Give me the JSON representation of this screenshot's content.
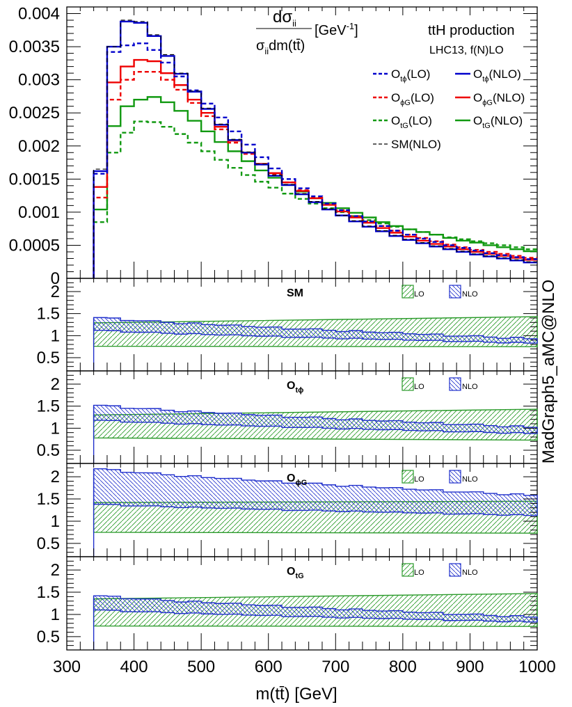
{
  "colors": {
    "tphi": "#0000cc",
    "phig": "#ee0000",
    "tg": "#119911",
    "sm": "#000000",
    "lo_band": "#2a9a2a",
    "nlo_band": "#1f2fcc"
  },
  "main_title": {
    "numerator": "dσ",
    "numerator_sub": "ii",
    "denominator": "σ",
    "denominator_sub": "ii",
    "denominator_rest": "dm(tt̄)",
    "unit": "[GeV",
    "unit_sup": "-1",
    "unit_close": "]"
  },
  "process_label": "ttH production",
  "process_sublabel": "LHC13, f(N)LO",
  "watermark": "MadGraph5_aMC@NLO",
  "x_axis_title": "m(tt̄) [GeV]",
  "legend": [
    {
      "key": "tphi_lo",
      "base": "O",
      "sub": "tϕ",
      "tail": "(LO)",
      "style": "dash",
      "color": "tphi"
    },
    {
      "key": "tphi_nlo",
      "base": "O",
      "sub": "tϕ",
      "tail": "(NLO)",
      "style": "solid",
      "color": "tphi"
    },
    {
      "key": "phig_lo",
      "base": "O",
      "sub": "ϕG",
      "tail": "(LO)",
      "style": "dash",
      "color": "phig"
    },
    {
      "key": "phig_nlo",
      "base": "O",
      "sub": "ϕG",
      "tail": "(NLO)",
      "style": "solid",
      "color": "phig"
    },
    {
      "key": "tg_lo",
      "base": "O",
      "sub": "tG",
      "tail": "(LO)",
      "style": "dash",
      "color": "tg"
    },
    {
      "key": "tg_nlo",
      "base": "O",
      "sub": "tG",
      "tail": "(NLO)",
      "style": "solid",
      "color": "tg"
    },
    {
      "key": "sm_nlo",
      "base": "SM",
      "sub": "",
      "tail": "(NLO)",
      "style": "dash",
      "color": "sm"
    }
  ],
  "chart_data": {
    "type": "histogram",
    "x_range": [
      300,
      1000
    ],
    "x_ticks": [
      "300",
      "400",
      "500",
      "600",
      "700",
      "800",
      "900",
      "1000"
    ],
    "x_tick_values": [
      300,
      400,
      500,
      600,
      700,
      800,
      900,
      1000
    ],
    "bin_edges": [
      340,
      360,
      380,
      400,
      420,
      440,
      460,
      480,
      500,
      520,
      540,
      560,
      580,
      600,
      620,
      640,
      660,
      680,
      700,
      720,
      740,
      760,
      780,
      800,
      820,
      840,
      860,
      880,
      900,
      920,
      940,
      960,
      980,
      1000
    ],
    "main_panel": {
      "y_range": [
        0,
        0.0041
      ],
      "y_ticks": [
        "0",
        "0.0005",
        "0.001",
        "0.0015",
        "0.002",
        "0.0025",
        "0.003",
        "0.0035",
        "0.004"
      ],
      "y_tick_values": [
        0,
        0.0005,
        0.001,
        0.0015,
        0.002,
        0.0025,
        0.003,
        0.0035,
        0.004
      ],
      "series": [
        {
          "key": "tg_lo",
          "name": "O_tG(LO)",
          "values": [
            0.00085,
            0.0019,
            0.0022,
            0.00237,
            0.00236,
            0.00229,
            0.00218,
            0.00205,
            0.00192,
            0.00179,
            0.00167,
            0.00156,
            0.00146,
            0.00137,
            0.00128,
            0.0012,
            0.00113,
            0.00106,
            0.001,
            0.00094,
            0.00088,
            0.00083,
            0.00078,
            0.00074,
            0.0007,
            0.00066,
            0.00062,
            0.00059,
            0.00056,
            0.00053,
            0.0005,
            0.00047,
            0.00044
          ]
        },
        {
          "key": "tg_nlo",
          "name": "O_tG(NLO)",
          "values": [
            0.00104,
            0.0023,
            0.0026,
            0.0027,
            0.00274,
            0.00266,
            0.00253,
            0.00238,
            0.00222,
            0.00206,
            0.00192,
            0.00177,
            0.00163,
            0.00152,
            0.00141,
            0.00131,
            0.00121,
            0.00114,
            0.00106,
            0.00099,
            0.00092,
            0.00085,
            0.00079,
            0.00074,
            0.0007,
            0.00066,
            0.00061,
            0.00057,
            0.00054,
            0.0005,
            0.00047,
            0.00044,
            0.00041
          ]
        },
        {
          "key": "phig_lo",
          "name": "O_ϕG(LO)",
          "values": [
            0.00122,
            0.0027,
            0.003,
            0.00312,
            0.00312,
            0.003,
            0.00285,
            0.00265,
            0.00245,
            0.00225,
            0.00205,
            0.00188,
            0.00172,
            0.00158,
            0.00145,
            0.00133,
            0.00122,
            0.00112,
            0.00103,
            0.00094,
            0.00086,
            0.00079,
            0.00072,
            0.00066,
            0.00061,
            0.00056,
            0.00051,
            0.00047,
            0.00043,
            0.0004,
            0.00037,
            0.00034,
            0.00031
          ]
        },
        {
          "key": "phig_nlo",
          "name": "O_ϕG(NLO)",
          "values": [
            0.00138,
            0.00296,
            0.0032,
            0.0033,
            0.00328,
            0.0031,
            0.00292,
            0.0027,
            0.0025,
            0.00229,
            0.00208,
            0.0019,
            0.00173,
            0.00159,
            0.00145,
            0.00132,
            0.00121,
            0.00111,
            0.00101,
            0.00092,
            0.00084,
            0.00076,
            0.00069,
            0.00063,
            0.00057,
            0.00052,
            0.00048,
            0.00044,
            0.0004,
            0.00037,
            0.00034,
            0.00031,
            0.00028
          ]
        },
        {
          "key": "tphi_lo",
          "name": "O_tϕ(LO)",
          "values": [
            0.00158,
            0.00342,
            0.00352,
            0.00355,
            0.00345,
            0.00326,
            0.00305,
            0.00284,
            0.00264,
            0.00243,
            0.00222,
            0.00202,
            0.00183,
            0.00166,
            0.0015,
            0.00136,
            0.00124,
            0.00113,
            0.00103,
            0.00094,
            0.00086,
            0.00079,
            0.00072,
            0.00066,
            0.0006,
            0.00055,
            0.0005,
            0.00046,
            0.00042,
            0.00038,
            0.00035,
            0.00032,
            0.00029
          ]
        },
        {
          "key": "tphi_nlo",
          "name": "O_tϕ(NLO)",
          "values": [
            0.00162,
            0.0035,
            0.00388,
            0.00386,
            0.00366,
            0.00336,
            0.00309,
            0.00282,
            0.00256,
            0.00232,
            0.00209,
            0.0019,
            0.00172,
            0.00155,
            0.00141,
            0.00127,
            0.00115,
            0.00104,
            0.00095,
            0.00086,
            0.00078,
            0.00071,
            0.00064,
            0.00058,
            0.00053,
            0.00048,
            0.00044,
            0.0004,
            0.00036,
            0.00033,
            0.0003,
            0.00027,
            0.00024
          ]
        },
        {
          "key": "sm_nlo",
          "name": "SM(NLO)",
          "values": [
            0.00165,
            0.0035,
            0.0039,
            0.00388,
            0.00368,
            0.00338,
            0.0031,
            0.00283,
            0.00257,
            0.00233,
            0.0021,
            0.00191,
            0.00173,
            0.00156,
            0.00142,
            0.00128,
            0.00116,
            0.00105,
            0.00095,
            0.00087,
            0.00079,
            0.00072,
            0.00065,
            0.00059,
            0.00054,
            0.00049,
            0.00045,
            0.00041,
            0.00037,
            0.00034,
            0.00031,
            0.00028,
            0.00025
          ]
        }
      ]
    },
    "ratio_panels": [
      {
        "label": "SM",
        "label_sub": "",
        "y_range": [
          0.2,
          2.3
        ],
        "y_ticks": [
          "0.5",
          "1",
          "1.5",
          "2"
        ],
        "y_tick_values": [
          0.5,
          1,
          1.5,
          2
        ],
        "legend_lo": "LO",
        "legend_nlo": "NLO",
        "lo_band": {
          "start": [
            1.29,
            0.76
          ],
          "end": [
            1.43,
            0.75
          ]
        },
        "nlo_band": {
          "start": [
            1.41,
            1.12
          ],
          "end": [
            0.93,
            0.83
          ]
        }
      },
      {
        "label": "O",
        "label_sub": "tϕ",
        "y_range": [
          0.2,
          2.3
        ],
        "y_ticks": [
          "0.5",
          "1",
          "1.5",
          "2"
        ],
        "y_tick_values": [
          0.5,
          1,
          1.5,
          2
        ],
        "legend_lo": "LO",
        "legend_nlo": "NLO",
        "lo_band": {
          "start": [
            1.3,
            0.78
          ],
          "end": [
            1.43,
            0.73
          ]
        },
        "nlo_band": {
          "start": [
            1.52,
            1.18
          ],
          "end": [
            1.02,
            0.88
          ]
        }
      },
      {
        "label": "O",
        "label_sub": "ϕG",
        "y_range": [
          0.2,
          2.3
        ],
        "y_ticks": [
          "0.5",
          "1",
          "1.5",
          "2"
        ],
        "y_tick_values": [
          0.5,
          1,
          1.5,
          2
        ],
        "legend_lo": "LO",
        "legend_nlo": "NLO",
        "lo_band": {
          "start": [
            1.42,
            0.75
          ],
          "end": [
            1.45,
            0.73
          ]
        },
        "nlo_band": {
          "start": [
            2.18,
            1.38
          ],
          "end": [
            1.58,
            1.13
          ]
        }
      },
      {
        "label": "O",
        "label_sub": "tG",
        "y_range": [
          0.2,
          2.3
        ],
        "y_ticks": [
          "0.5",
          "1",
          "1.5",
          "2"
        ],
        "y_tick_values": [
          0.5,
          1,
          1.5,
          2
        ],
        "legend_lo": "LO",
        "legend_nlo": "NLO",
        "lo_band": {
          "start": [
            1.35,
            0.74
          ],
          "end": [
            1.47,
            0.73
          ]
        },
        "nlo_band": {
          "start": [
            1.42,
            1.1
          ],
          "end": [
            0.94,
            0.83
          ]
        }
      }
    ]
  }
}
